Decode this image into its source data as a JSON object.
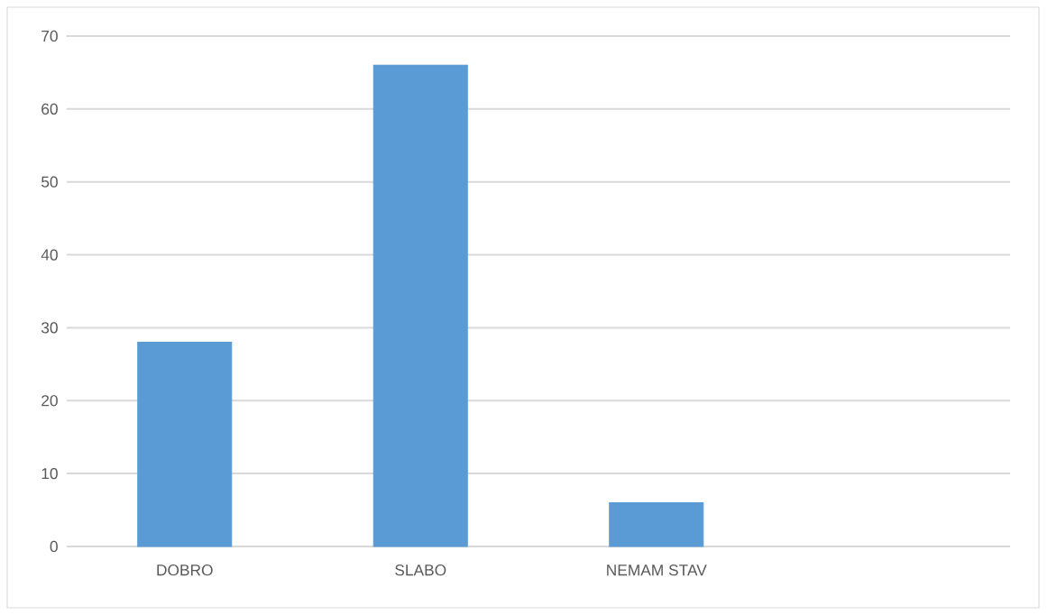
{
  "chart_data": {
    "type": "bar",
    "categories": [
      "DOBRO",
      "SLABO",
      "NEMAM STAV",
      null
    ],
    "values": [
      28,
      66,
      6,
      null
    ],
    "color": "#5b9bd5",
    "ylim": [
      0,
      70
    ],
    "yticks": [
      0,
      10,
      20,
      30,
      40,
      50,
      60,
      70
    ],
    "grid": "y"
  }
}
